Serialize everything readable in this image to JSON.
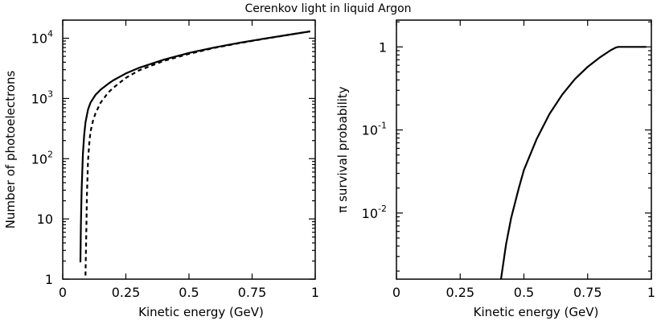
{
  "title": "Cerenkov light in liquid Argon",
  "chart_data": [
    {
      "type": "line",
      "xlabel": "Kinetic energy (GeV)",
      "ylabel": "Number of photoelectrons",
      "xscale": "linear",
      "yscale": "log",
      "xlim": [
        0,
        1
      ],
      "ylim": [
        1,
        20000
      ],
      "xticks": [
        {
          "value": 0,
          "label": "0"
        },
        {
          "value": 0.25,
          "label": "0.25"
        },
        {
          "value": 0.5,
          "label": "0.5"
        },
        {
          "value": 0.75,
          "label": "0.75"
        },
        {
          "value": 1,
          "label": "1"
        }
      ],
      "yticks": [
        {
          "value": 1,
          "base": "1",
          "exp": ""
        },
        {
          "value": 10,
          "base": "10",
          "exp": ""
        },
        {
          "value": 100,
          "base": "10",
          "exp": "2"
        },
        {
          "value": 1000,
          "base": "10",
          "exp": "3"
        },
        {
          "value": 10000,
          "base": "10",
          "exp": "4"
        }
      ],
      "series": [
        {
          "style": "solid",
          "x": [
            0.07,
            0.072,
            0.075,
            0.08,
            0.085,
            0.09,
            0.1,
            0.11,
            0.13,
            0.15,
            0.18,
            0.2,
            0.25,
            0.3,
            0.4,
            0.5,
            0.6,
            0.7,
            0.8,
            0.9,
            0.98
          ],
          "y": [
            1.9,
            8,
            30,
            120,
            250,
            400,
            650,
            850,
            1150,
            1400,
            1750,
            2000,
            2600,
            3200,
            4400,
            5700,
            7000,
            8400,
            9900,
            11500,
            13000
          ]
        },
        {
          "style": "dashed",
          "x": [
            0.09,
            0.093,
            0.096,
            0.1,
            0.105,
            0.11,
            0.12,
            0.13,
            0.15,
            0.18,
            0.2,
            0.25,
            0.3,
            0.4,
            0.5,
            0.6,
            0.7,
            0.8,
            0.9,
            0.98
          ],
          "y": [
            1.15,
            5,
            25,
            90,
            180,
            280,
            430,
            570,
            850,
            1250,
            1500,
            2200,
            2900,
            4200,
            5500,
            6900,
            8300,
            9800,
            11500,
            13000
          ]
        }
      ]
    },
    {
      "type": "line",
      "xlabel": "Kinetic energy (GeV)",
      "ylabel": "π survival probability",
      "xscale": "linear",
      "yscale": "log",
      "xlim": [
        0,
        1
      ],
      "ylim": [
        0.0016,
        2.1
      ],
      "xticks": [
        {
          "value": 0,
          "label": "0"
        },
        {
          "value": 0.25,
          "label": "0.25"
        },
        {
          "value": 0.5,
          "label": "0.5"
        },
        {
          "value": 0.75,
          "label": "0.75"
        },
        {
          "value": 1,
          "label": "1"
        }
      ],
      "yticks": [
        {
          "value": 0.01,
          "base": "10",
          "exp": "-2"
        },
        {
          "value": 0.1,
          "base": "10",
          "exp": "-1"
        },
        {
          "value": 1,
          "base": "1",
          "exp": ""
        }
      ],
      "series": [
        {
          "style": "solid",
          "x": [
            0.41,
            0.43,
            0.45,
            0.48,
            0.5,
            0.55,
            0.6,
            0.65,
            0.7,
            0.75,
            0.8,
            0.84,
            0.86,
            0.87,
            0.9,
            0.98
          ],
          "y": [
            0.0016,
            0.0042,
            0.0087,
            0.02,
            0.033,
            0.078,
            0.155,
            0.265,
            0.41,
            0.575,
            0.755,
            0.91,
            0.98,
            1.0,
            1.0,
            1.0
          ]
        }
      ]
    }
  ]
}
